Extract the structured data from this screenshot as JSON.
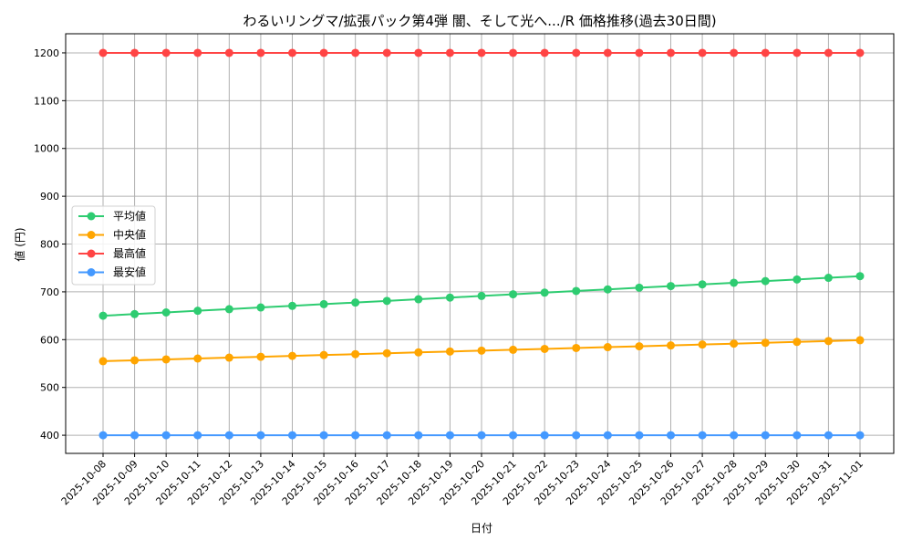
{
  "chart_data": {
    "type": "line",
    "title": "わるいリングマ/拡張パック第4弾 闇、そして光へ.../R 価格推移(過去30日間)",
    "xlabel": "日付",
    "ylabel": "値 (円)",
    "ylim": [
      362,
      1240
    ],
    "yticks": [
      400,
      500,
      600,
      700,
      800,
      900,
      1000,
      1100,
      1200
    ],
    "grid": true,
    "legend_placement": "center-left",
    "x": [
      "2025-10-08",
      "2025-10-09",
      "2025-10-10",
      "2025-10-11",
      "2025-10-12",
      "2025-10-13",
      "2025-10-14",
      "2025-10-15",
      "2025-10-16",
      "2025-10-17",
      "2025-10-18",
      "2025-10-19",
      "2025-10-20",
      "2025-10-21",
      "2025-10-22",
      "2025-10-23",
      "2025-10-24",
      "2025-10-25",
      "2025-10-26",
      "2025-10-27",
      "2025-10-28",
      "2025-10-29",
      "2025-10-30",
      "2025-10-31",
      "2025-11-01"
    ],
    "series": [
      {
        "name": "平均値",
        "color": "#2ecc71",
        "values": [
          650,
          653.5,
          656.9,
          660.4,
          663.8,
          667.3,
          670.7,
          674.2,
          677.6,
          681.1,
          684.5,
          688,
          691.4,
          694.9,
          698.3,
          701.8,
          705.2,
          708.7,
          712.1,
          715.6,
          719,
          722.5,
          725.9,
          729.4,
          732.8
        ]
      },
      {
        "name": "中央値",
        "color": "#ffa500",
        "values": [
          555,
          556.8,
          558.7,
          560.5,
          562.3,
          564.2,
          566,
          567.8,
          569.6,
          571.5,
          573.3,
          575.1,
          577,
          578.8,
          580.6,
          582.5,
          584.3,
          586.1,
          587.9,
          589.8,
          591.6,
          593.4,
          595.3,
          597.1,
          598.9
        ]
      },
      {
        "name": "最高値",
        "color": "#ff4444",
        "values": [
          1200,
          1200,
          1200,
          1200,
          1200,
          1200,
          1200,
          1200,
          1200,
          1200,
          1200,
          1200,
          1200,
          1200,
          1200,
          1200,
          1200,
          1200,
          1200,
          1200,
          1200,
          1200,
          1200,
          1200,
          1200
        ]
      },
      {
        "name": "最安値",
        "color": "#4499ff",
        "values": [
          400,
          400,
          400,
          400,
          400,
          400,
          400,
          400,
          400,
          400,
          400,
          400,
          400,
          400,
          400,
          400,
          400,
          400,
          400,
          400,
          400,
          400,
          400,
          400,
          400
        ]
      }
    ]
  }
}
